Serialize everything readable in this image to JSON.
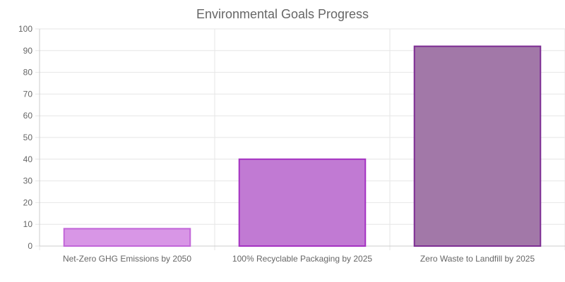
{
  "chart_data": {
    "type": "bar",
    "title": "Environmental Goals Progress",
    "categories": [
      "Net-Zero GHG Emissions by 2050",
      "100% Recyclable Packaging by 2025",
      "Zero Waste to Landfill by 2025"
    ],
    "values": [
      8,
      40,
      92
    ],
    "ylim": [
      0,
      100
    ],
    "yticks": [
      0,
      10,
      20,
      30,
      40,
      50,
      60,
      70,
      80,
      90,
      100
    ],
    "xlabel": "",
    "ylabel": "",
    "grid": true,
    "legend": "none",
    "bar_fill_colors": [
      "#d896e6",
      "#c17ad3",
      "#a278a8"
    ],
    "bar_border_colors": [
      "#c266d9",
      "#a532c2",
      "#7e2e94"
    ]
  }
}
